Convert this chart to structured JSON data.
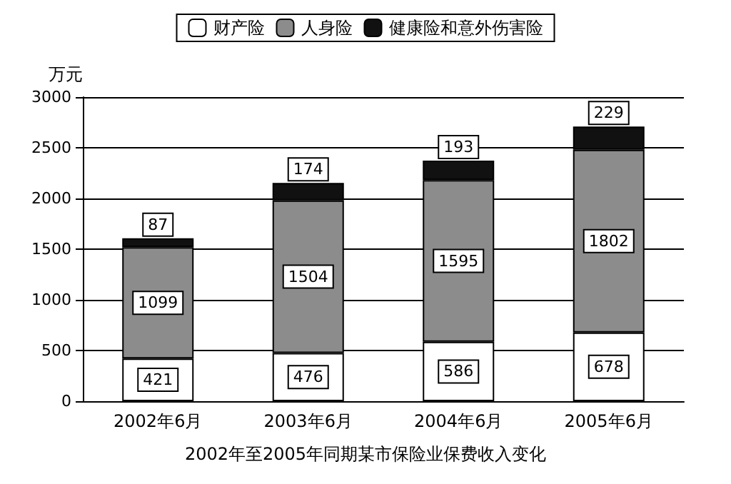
{
  "chart_data": {
    "type": "bar",
    "title": "2002年至2005年同期某市保险业保费收入变化",
    "ylabel": "万元",
    "categories": [
      "2002年6月",
      "2003年6月",
      "2004年6月",
      "2005年6月"
    ],
    "series": [
      {
        "name": "财产险",
        "color": "#ffffff",
        "values": [
          421,
          476,
          586,
          678
        ]
      },
      {
        "name": "人身险",
        "color": "#8c8c8c",
        "values": [
          1099,
          1504,
          1595,
          1802
        ]
      },
      {
        "name": "健康险和意外伤害险",
        "color": "#111111",
        "values": [
          87,
          174,
          193,
          229
        ]
      }
    ],
    "stacked": true,
    "data_labels": true,
    "ylim": [
      0,
      3000
    ],
    "yticks": [
      0,
      500,
      1000,
      1500,
      2000,
      2500,
      3000
    ],
    "grid": "y",
    "legend": "top"
  }
}
